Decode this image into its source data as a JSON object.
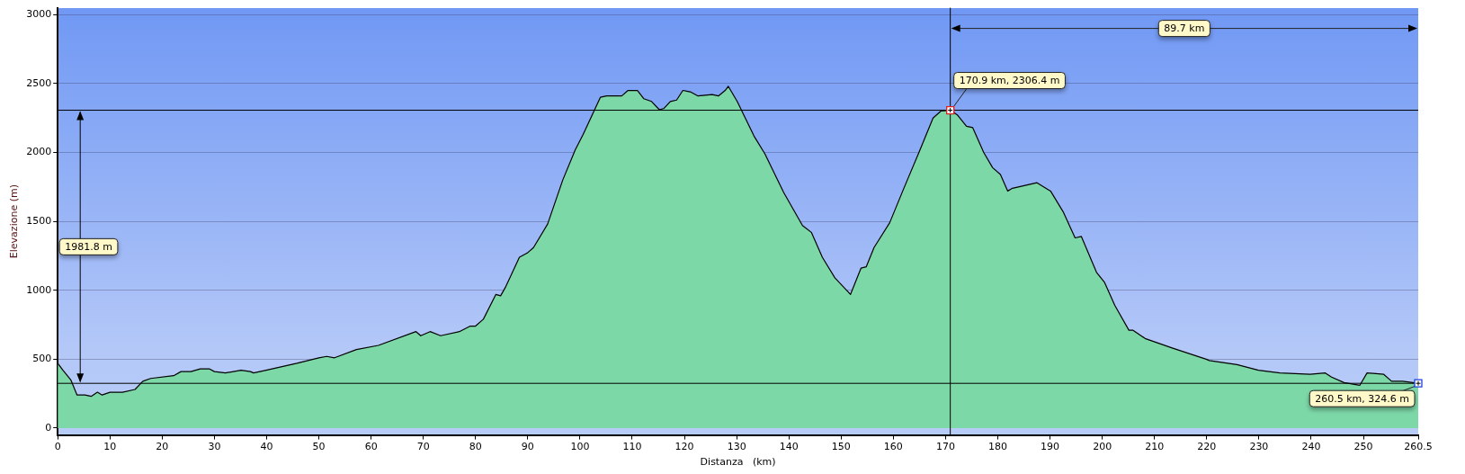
{
  "chart_data": {
    "type": "area",
    "xlabel": "Distanza   (km)",
    "ylabel": "Elevazione (m)",
    "xlim": [
      0,
      260.5
    ],
    "xticks": [
      0,
      10,
      20,
      30,
      40,
      50,
      60,
      70,
      80,
      90,
      100,
      110,
      120,
      130,
      140,
      150,
      160,
      170,
      180,
      190,
      200,
      210,
      220,
      230,
      240,
      250,
      260.5
    ],
    "ylim": [
      -50,
      3050
    ],
    "yticks": [
      0,
      500,
      1000,
      1500,
      2000,
      2500,
      3000
    ],
    "grid": "y",
    "legend": false,
    "marker": "none",
    "line_style": "solid",
    "series": [
      {
        "color": "#7dd8a8",
        "x": [
          0,
          1,
          2.5,
          3.7,
          5.2,
          6.4,
          7.6,
          8.5,
          10,
          12.4,
          14.8,
          16.3,
          17.8,
          22.2,
          23.6,
          25.5,
          27.3,
          29,
          30,
          32.1,
          35.1,
          36.9,
          37.5,
          39.9,
          45.8,
          50,
          51.5,
          53,
          57.2,
          61.4,
          68.6,
          69.5,
          71.3,
          73.3,
          76.9,
          79,
          80,
          81.5,
          83.9,
          84.8,
          85.7,
          88.4,
          89.9,
          91.1,
          93.8,
          96.7,
          99.1,
          100.6,
          103.9,
          105.1,
          108,
          109.2,
          111,
          112.2,
          113.7,
          115.2,
          116.1,
          117.3,
          118.5,
          119.7,
          121.1,
          122.6,
          125.3,
          126.5,
          127.8,
          128.4,
          130.1,
          133.3,
          135.4,
          139,
          142.6,
          144.3,
          146.4,
          148.8,
          150.3,
          151.8,
          153.8,
          154.8,
          156.3,
          159.3,
          161.9,
          164.9,
          167.6,
          169.1,
          170.9,
          172.3,
          174,
          175.2,
          177.3,
          179,
          180.5,
          181.9,
          182.8,
          187.5,
          190.1,
          192.5,
          194.8,
          196,
          198.9,
          200.4,
          202.4,
          205.1,
          205.9,
          208.2,
          213.5,
          219.9,
          220.5,
          225.8,
          229.9,
          234,
          239.8,
          242.7,
          243.9,
          246.3,
          249.3,
          250.7,
          253.9,
          255.4,
          257.5,
          260.5
        ],
        "values": [
          470,
          420,
          350,
          240,
          240,
          230,
          260,
          240,
          260,
          260,
          280,
          340,
          360,
          380,
          410,
          410,
          430,
          430,
          410,
          400,
          420,
          410,
          400,
          420,
          470,
          510,
          520,
          510,
          570,
          600,
          700,
          670,
          700,
          670,
          700,
          740,
          740,
          790,
          970,
          960,
          1020,
          1240,
          1270,
          1310,
          1480,
          1800,
          2020,
          2130,
          2400,
          2410,
          2410,
          2450,
          2450,
          2390,
          2370,
          2310,
          2320,
          2370,
          2380,
          2450,
          2440,
          2410,
          2420,
          2410,
          2450,
          2480,
          2370,
          2120,
          1990,
          1710,
          1470,
          1420,
          1240,
          1090,
          1030,
          970,
          1160,
          1170,
          1310,
          1490,
          1730,
          2000,
          2250,
          2300,
          2306.4,
          2270,
          2190,
          2180,
          2000,
          1890,
          1840,
          1720,
          1740,
          1780,
          1720,
          1570,
          1380,
          1390,
          1130,
          1060,
          890,
          710,
          710,
          650,
          580,
          500,
          490,
          460,
          420,
          400,
          390,
          400,
          370,
          330,
          310,
          400,
          390,
          340,
          340,
          324.6
        ]
      }
    ],
    "ref_lines": [
      {
        "axis": "y",
        "value": 2306.4,
        "color": "#000000"
      },
      {
        "axis": "y",
        "value": 324.6,
        "color": "#000000"
      },
      {
        "axis": "x",
        "value": 170.9,
        "color": "#000000"
      }
    ],
    "annotations": [
      {
        "text": "170.9 km, 2306.4 m",
        "x": 170.9,
        "y": 2306.4
      },
      {
        "text": "260.5 km, 324.6 m",
        "x": 260.5,
        "y": 324.6
      },
      "1981.8 m",
      "89.7 km"
    ]
  }
}
